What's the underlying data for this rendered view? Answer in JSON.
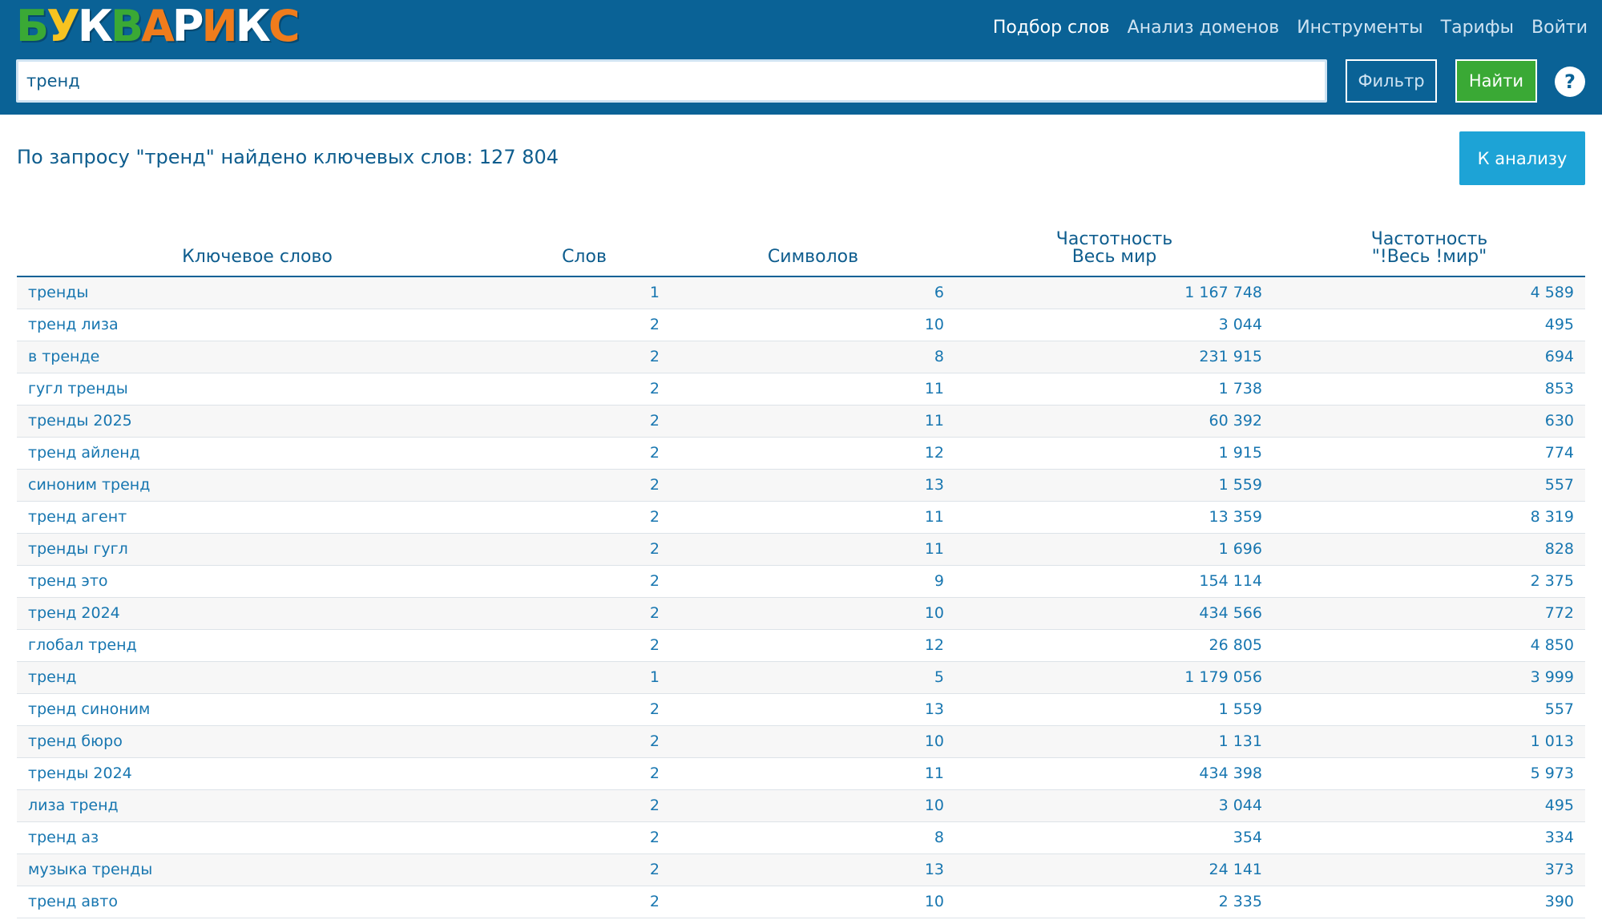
{
  "brand": {
    "logo_text": "БУКВАРИКС",
    "logo_letters": [
      {
        "ch": "Б",
        "color": "#3aa935"
      },
      {
        "ch": "У",
        "color": "#f7c320"
      },
      {
        "ch": "К",
        "color": "#ffffff"
      },
      {
        "ch": "В",
        "color": "#3aa935"
      },
      {
        "ch": "А",
        "color": "#f07c1c"
      },
      {
        "ch": "Р",
        "color": "#ffffff"
      },
      {
        "ch": "И",
        "color": "#f07c1c"
      },
      {
        "ch": "К",
        "color": "#ffffff"
      },
      {
        "ch": "С",
        "color": "#f07c1c"
      }
    ]
  },
  "nav": {
    "items": [
      {
        "label": "Подбор слов",
        "active": true
      },
      {
        "label": "Анализ доменов",
        "active": false
      },
      {
        "label": "Инструменты",
        "active": false
      },
      {
        "label": "Тарифы",
        "active": false
      },
      {
        "label": "Войти",
        "active": false
      }
    ]
  },
  "search": {
    "value": "тренд",
    "filter_label": "Фильтр",
    "find_label": "Найти",
    "help_label": "?"
  },
  "results": {
    "title": "По запросу \"тренд\" найдено ключевых слов: 127 804",
    "analyze_label": "К анализу"
  },
  "table": {
    "columns": [
      "Ключевое слово",
      "Слов",
      "Символов",
      "Частотность\nВесь мир",
      "Частотность\n\"!Весь !мир\""
    ],
    "rows": [
      [
        "тренды",
        "1",
        "6",
        "1 167 748",
        "4 589"
      ],
      [
        "тренд лиза",
        "2",
        "10",
        "3 044",
        "495"
      ],
      [
        "в тренде",
        "2",
        "8",
        "231 915",
        "694"
      ],
      [
        "гугл тренды",
        "2",
        "11",
        "1 738",
        "853"
      ],
      [
        "тренды 2025",
        "2",
        "11",
        "60 392",
        "630"
      ],
      [
        "тренд айленд",
        "2",
        "12",
        "1 915",
        "774"
      ],
      [
        "синоним тренд",
        "2",
        "13",
        "1 559",
        "557"
      ],
      [
        "тренд агент",
        "2",
        "11",
        "13 359",
        "8 319"
      ],
      [
        "тренды гугл",
        "2",
        "11",
        "1 696",
        "828"
      ],
      [
        "тренд это",
        "2",
        "9",
        "154 114",
        "2 375"
      ],
      [
        "тренд 2024",
        "2",
        "10",
        "434 566",
        "772"
      ],
      [
        "глобал тренд",
        "2",
        "12",
        "26 805",
        "4 850"
      ],
      [
        "тренд",
        "1",
        "5",
        "1 179 056",
        "3 999"
      ],
      [
        "тренд синоним",
        "2",
        "13",
        "1 559",
        "557"
      ],
      [
        "тренд бюро",
        "2",
        "10",
        "1 131",
        "1 013"
      ],
      [
        "тренды 2024",
        "2",
        "11",
        "434 398",
        "5 973"
      ],
      [
        "лиза тренд",
        "2",
        "10",
        "3 044",
        "495"
      ],
      [
        "тренд аз",
        "2",
        "8",
        "354",
        "334"
      ],
      [
        "музыка тренды",
        "2",
        "13",
        "24 141",
        "373"
      ],
      [
        "тренд авто",
        "2",
        "10",
        "2 335",
        "390"
      ]
    ]
  },
  "colors": {
    "header_bg": "#0a6296",
    "find_button": "#3aa935",
    "analyze_button": "#1da3d6",
    "text": "#0e5d8e"
  }
}
